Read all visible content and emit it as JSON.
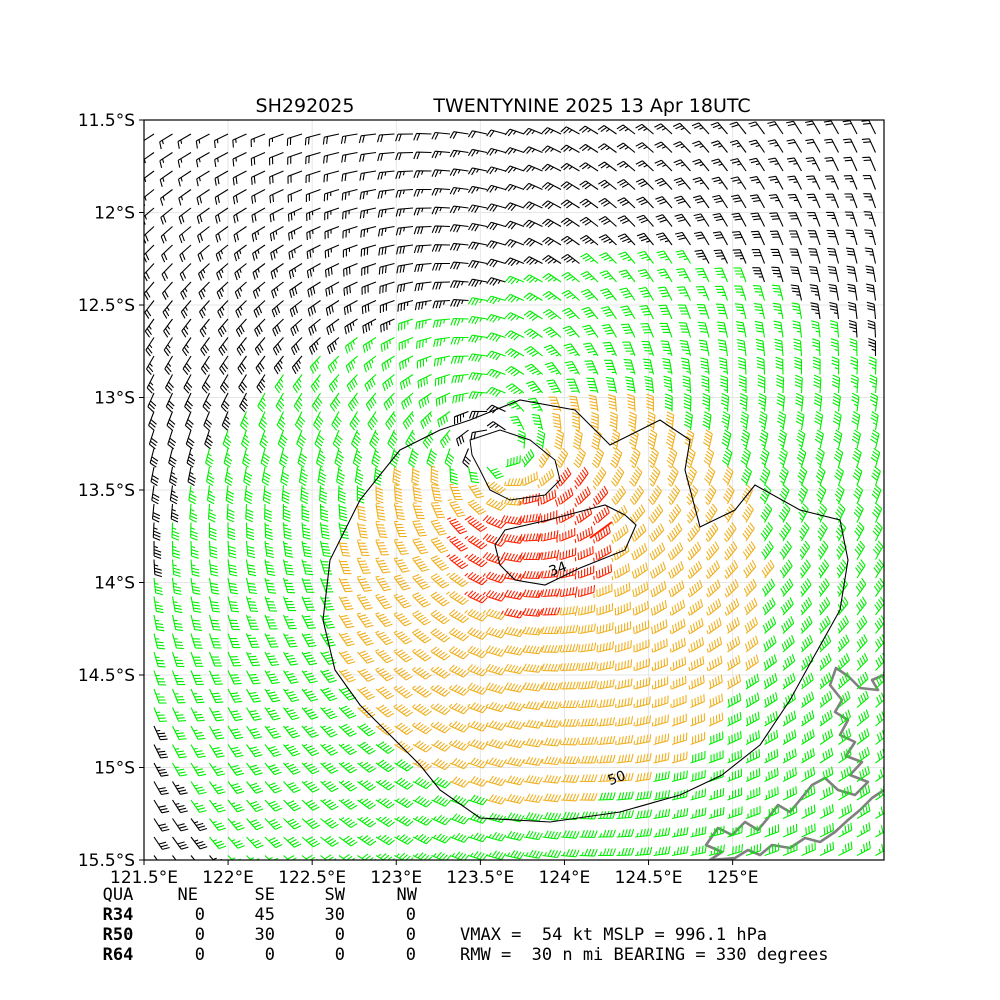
{
  "chart_data": {
    "type": "wind-barb-map",
    "title_left": "SH292025",
    "title_right": "TWENTYNINE 2025 13 Apr 18UTC",
    "xlabel": "",
    "ylabel": "",
    "xlim": [
      121.5,
      125.9
    ],
    "ylim": [
      -15.5,
      -11.5
    ],
    "x_ticks": [
      121.5,
      122.0,
      122.5,
      123.0,
      123.5,
      124.0,
      124.5,
      125.0
    ],
    "x_tick_labels": [
      "121.5°E",
      "122°E",
      "122.5°E",
      "123°E",
      "123.5°E",
      "124°E",
      "124.5°E",
      "125°E"
    ],
    "y_ticks": [
      -11.5,
      -12.0,
      -12.5,
      -13.0,
      -13.5,
      -14.0,
      -14.5,
      -15.0,
      -15.5
    ],
    "y_tick_labels": [
      "11.5°S",
      "12°S",
      "12.5°S",
      "13°S",
      "13.5°S",
      "14°S",
      "14.5°S",
      "15°S",
      "15.5°S"
    ],
    "grid": true,
    "storm_center": {
      "lon": 123.6,
      "lat": -13.3
    },
    "contour_labels": [
      {
        "text": "34",
        "lon": 123.97,
        "lat": -13.95
      },
      {
        "text": "50",
        "lon": 124.32,
        "lat": -15.08
      }
    ],
    "barb_colors": {
      "below_34": "#000000",
      "r34": "#00ee00",
      "r50": "#f0b020",
      "r64": "#ff2200"
    },
    "coast_color": "#808080",
    "contour_color": "#000000"
  },
  "stats": {
    "header": [
      "QUA",
      "NE",
      "SE",
      "SW",
      "NW"
    ],
    "rows": [
      [
        "R34",
        "0",
        "45",
        "30",
        "0"
      ],
      [
        "R50",
        "0",
        "30",
        "0",
        "0"
      ],
      [
        "R64",
        "0",
        "0",
        "0",
        "0"
      ]
    ],
    "line1": "VMAX =  54 kt MSLP = 996.1 hPa",
    "line2": "RMW =  30 n mi BEARING = 330 degrees"
  }
}
